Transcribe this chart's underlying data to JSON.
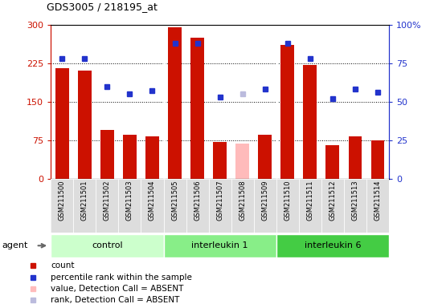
{
  "title": "GDS3005 / 218195_at",
  "samples": [
    "GSM211500",
    "GSM211501",
    "GSM211502",
    "GSM211503",
    "GSM211504",
    "GSM211505",
    "GSM211506",
    "GSM211507",
    "GSM211508",
    "GSM211509",
    "GSM211510",
    "GSM211511",
    "GSM211512",
    "GSM211513",
    "GSM211514"
  ],
  "bar_values": [
    215,
    210,
    95,
    85,
    82,
    295,
    275,
    72,
    68,
    85,
    260,
    222,
    65,
    82,
    75
  ],
  "bar_absent": [
    false,
    false,
    false,
    false,
    false,
    false,
    false,
    false,
    true,
    false,
    false,
    false,
    false,
    false,
    false
  ],
  "rank_values": [
    78,
    78,
    60,
    55,
    57,
    88,
    88,
    53,
    55,
    58,
    88,
    78,
    52,
    58,
    56
  ],
  "rank_absent": [
    false,
    false,
    false,
    false,
    false,
    false,
    false,
    false,
    true,
    false,
    false,
    false,
    false,
    false,
    false
  ],
  "groups": [
    {
      "label": "control",
      "start": 0,
      "end": 5,
      "color": "#ccffcc"
    },
    {
      "label": "interleukin 1",
      "start": 5,
      "end": 10,
      "color": "#88ee88"
    },
    {
      "label": "interleukin 6",
      "start": 10,
      "end": 15,
      "color": "#44cc44"
    }
  ],
  "ylim_left": [
    0,
    300
  ],
  "ylim_right": [
    0,
    100
  ],
  "yticks_left": [
    0,
    75,
    150,
    225,
    300
  ],
  "yticks_right": [
    0,
    25,
    50,
    75,
    100
  ],
  "bar_color_normal": "#cc1100",
  "bar_color_absent": "#ffbbbb",
  "rank_color_normal": "#2233cc",
  "rank_color_absent": "#bbbbdd",
  "dotted_line_vals": [
    75,
    150,
    225
  ],
  "legend_items": [
    {
      "color": "#cc1100",
      "label": "count"
    },
    {
      "color": "#2233cc",
      "label": "percentile rank within the sample"
    },
    {
      "color": "#ffbbbb",
      "label": "value, Detection Call = ABSENT"
    },
    {
      "color": "#bbbbdd",
      "label": "rank, Detection Call = ABSENT"
    }
  ]
}
